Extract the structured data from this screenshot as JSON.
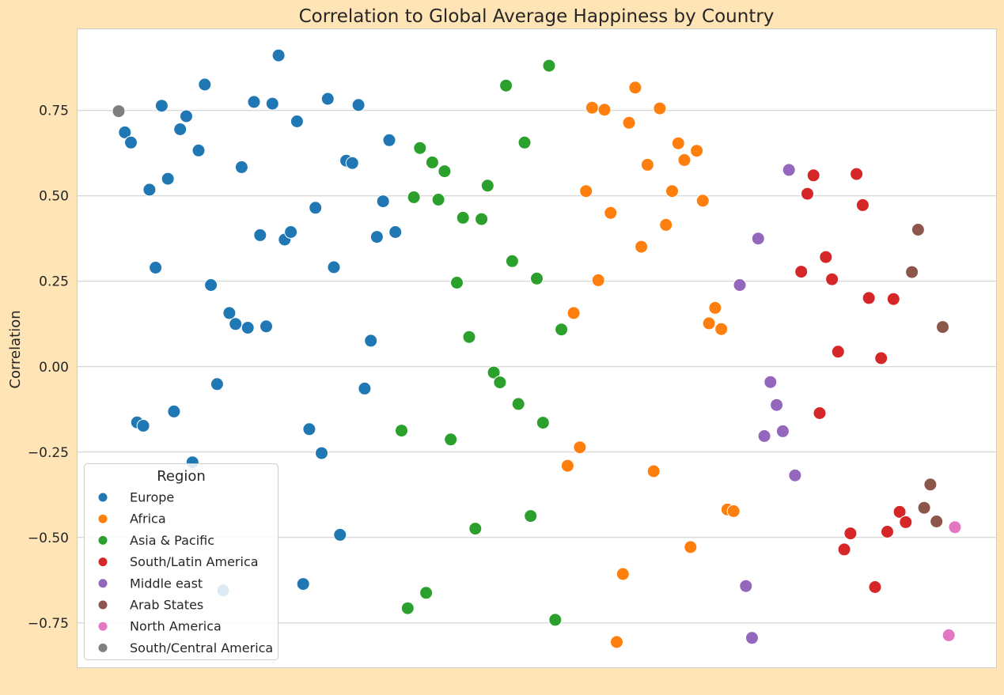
{
  "chart_data": {
    "type": "scatter",
    "title": "Correlation to Global Average Happiness by Country",
    "xlabel": "",
    "ylabel": "Correlation",
    "ylim": [
      -0.88,
      0.99
    ],
    "y_ticks": [
      -0.75,
      -0.5,
      -0.25,
      0.0,
      0.25,
      0.5,
      0.75
    ],
    "y_tick_labels": [
      "−0.75",
      "−0.50",
      "−0.25",
      "0.00",
      "0.25",
      "0.50",
      "0.75"
    ],
    "x_axis_labels_visible": false,
    "grid": "horizontal",
    "legend": {
      "title": "Region",
      "placement": "lower-left",
      "entries": [
        {
          "label": "Europe",
          "color": "#1f77b4"
        },
        {
          "label": "Africa",
          "color": "#ff7f0e"
        },
        {
          "label": "Asia & Pacific",
          "color": "#2ca02c"
        },
        {
          "label": "South/Latin America",
          "color": "#d62728"
        },
        {
          "label": "Middle east",
          "color": "#9467bd"
        },
        {
          "label": "Arab States",
          "color": "#8c564b"
        },
        {
          "label": "North America",
          "color": "#e377c2"
        },
        {
          "label": "South/Central America",
          "color": "#7f7f7f"
        }
      ]
    },
    "series": [
      {
        "name": "South/Central America",
        "color": "#7f7f7f",
        "points": [
          [
            0,
            0.748
          ]
        ]
      },
      {
        "name": "Europe",
        "color": "#1f77b4",
        "points": [
          [
            1,
            0.686
          ],
          [
            2,
            0.656
          ],
          [
            3,
            -0.163
          ],
          [
            4,
            -0.173
          ],
          [
            5,
            0.518
          ],
          [
            6,
            0.29
          ],
          [
            7,
            0.764
          ],
          [
            8,
            0.55
          ],
          [
            9,
            -0.131
          ],
          [
            10,
            0.695
          ],
          [
            11,
            0.733
          ],
          [
            12,
            -0.28
          ],
          [
            13,
            0.633
          ],
          [
            14,
            0.826
          ],
          [
            15,
            0.239
          ],
          [
            16,
            -0.051
          ],
          [
            17,
            -0.655
          ],
          [
            18,
            0.157
          ],
          [
            19,
            0.125
          ],
          [
            20,
            0.584
          ],
          [
            21,
            0.114
          ],
          [
            22,
            0.775
          ],
          [
            23,
            0.385
          ],
          [
            24,
            0.118
          ],
          [
            25,
            0.77
          ],
          [
            26,
            0.911
          ],
          [
            27,
            0.372
          ],
          [
            28,
            0.394
          ],
          [
            29,
            0.718
          ],
          [
            30,
            -0.636
          ],
          [
            31,
            -0.183
          ],
          [
            32,
            0.465
          ],
          [
            33,
            -0.253
          ],
          [
            34,
            0.784
          ],
          [
            35,
            0.291
          ],
          [
            36,
            -0.492
          ],
          [
            37,
            0.603
          ],
          [
            38,
            0.596
          ],
          [
            39,
            0.766
          ],
          [
            40,
            -0.064
          ],
          [
            41,
            0.076
          ],
          [
            42,
            0.38
          ],
          [
            43,
            0.484
          ],
          [
            44,
            0.663
          ],
          [
            45,
            0.394
          ]
        ]
      },
      {
        "name": "Asia & Pacific",
        "color": "#2ca02c",
        "points": [
          [
            46,
            -0.187
          ],
          [
            47,
            -0.707
          ],
          [
            48,
            0.496
          ],
          [
            49,
            0.64
          ],
          [
            50,
            -0.662
          ],
          [
            51,
            0.598
          ],
          [
            52,
            0.489
          ],
          [
            53,
            0.572
          ],
          [
            54,
            -0.213
          ],
          [
            55,
            0.246
          ],
          [
            56,
            0.436
          ],
          [
            57,
            0.087
          ],
          [
            58,
            -0.474
          ],
          [
            59,
            0.432
          ],
          [
            60,
            0.53
          ],
          [
            61,
            -0.017
          ],
          [
            62,
            -0.046
          ],
          [
            63,
            0.823
          ],
          [
            64,
            0.309
          ],
          [
            65,
            -0.109
          ],
          [
            66,
            0.656
          ],
          [
            67,
            -0.437
          ],
          [
            68,
            0.258
          ],
          [
            69,
            -0.164
          ],
          [
            70,
            0.881
          ],
          [
            71,
            -0.741
          ],
          [
            72,
            0.109
          ]
        ]
      },
      {
        "name": "Africa",
        "color": "#ff7f0e",
        "points": [
          [
            73,
            -0.29
          ],
          [
            74,
            0.157
          ],
          [
            75,
            -0.236
          ],
          [
            76,
            0.514
          ],
          [
            77,
            0.758
          ],
          [
            78,
            0.253
          ],
          [
            79,
            0.752
          ],
          [
            80,
            0.45
          ],
          [
            81,
            -0.806
          ],
          [
            82,
            -0.607
          ],
          [
            83,
            0.714
          ],
          [
            84,
            0.817
          ],
          [
            85,
            0.351
          ],
          [
            86,
            0.591
          ],
          [
            87,
            -0.306
          ],
          [
            88,
            0.756
          ],
          [
            89,
            0.415
          ],
          [
            90,
            0.514
          ],
          [
            91,
            0.654
          ],
          [
            92,
            0.605
          ],
          [
            93,
            -0.528
          ],
          [
            94,
            0.632
          ],
          [
            95,
            0.486
          ],
          [
            96,
            0.127
          ],
          [
            97,
            0.172
          ],
          [
            98,
            0.11
          ],
          [
            99,
            -0.418
          ],
          [
            100,
            -0.423
          ]
        ]
      },
      {
        "name": "Middle east",
        "color": "#9467bd",
        "points": [
          [
            101,
            0.239
          ],
          [
            102,
            -0.642
          ],
          [
            103,
            -0.794
          ],
          [
            104,
            0.375
          ],
          [
            105,
            -0.203
          ],
          [
            106,
            -0.045
          ],
          [
            107,
            -0.112
          ],
          [
            108,
            -0.189
          ],
          [
            109,
            0.576
          ],
          [
            110,
            -0.318
          ]
        ]
      },
      {
        "name": "South/Latin America",
        "color": "#d62728",
        "points": [
          [
            111,
            0.278
          ],
          [
            112,
            0.506
          ],
          [
            113,
            0.56
          ],
          [
            114,
            -0.136
          ],
          [
            115,
            0.321
          ],
          [
            116,
            0.256
          ],
          [
            117,
            0.044
          ],
          [
            118,
            -0.535
          ],
          [
            119,
            -0.488
          ],
          [
            120,
            0.564
          ],
          [
            121,
            0.473
          ],
          [
            122,
            0.201
          ],
          [
            123,
            -0.645
          ],
          [
            124,
            0.025
          ],
          [
            125,
            -0.483
          ],
          [
            126,
            0.198
          ],
          [
            127,
            -0.425
          ],
          [
            128,
            -0.455
          ]
        ]
      },
      {
        "name": "Arab States",
        "color": "#8c564b",
        "points": [
          [
            129,
            0.277
          ],
          [
            130,
            0.401
          ],
          [
            131,
            -0.413
          ],
          [
            132,
            -0.345
          ],
          [
            133,
            -0.453
          ],
          [
            134,
            0.116
          ]
        ]
      },
      {
        "name": "North America",
        "color": "#e377c2",
        "points": [
          [
            135,
            -0.786
          ],
          [
            136,
            -0.47
          ]
        ]
      }
    ]
  }
}
